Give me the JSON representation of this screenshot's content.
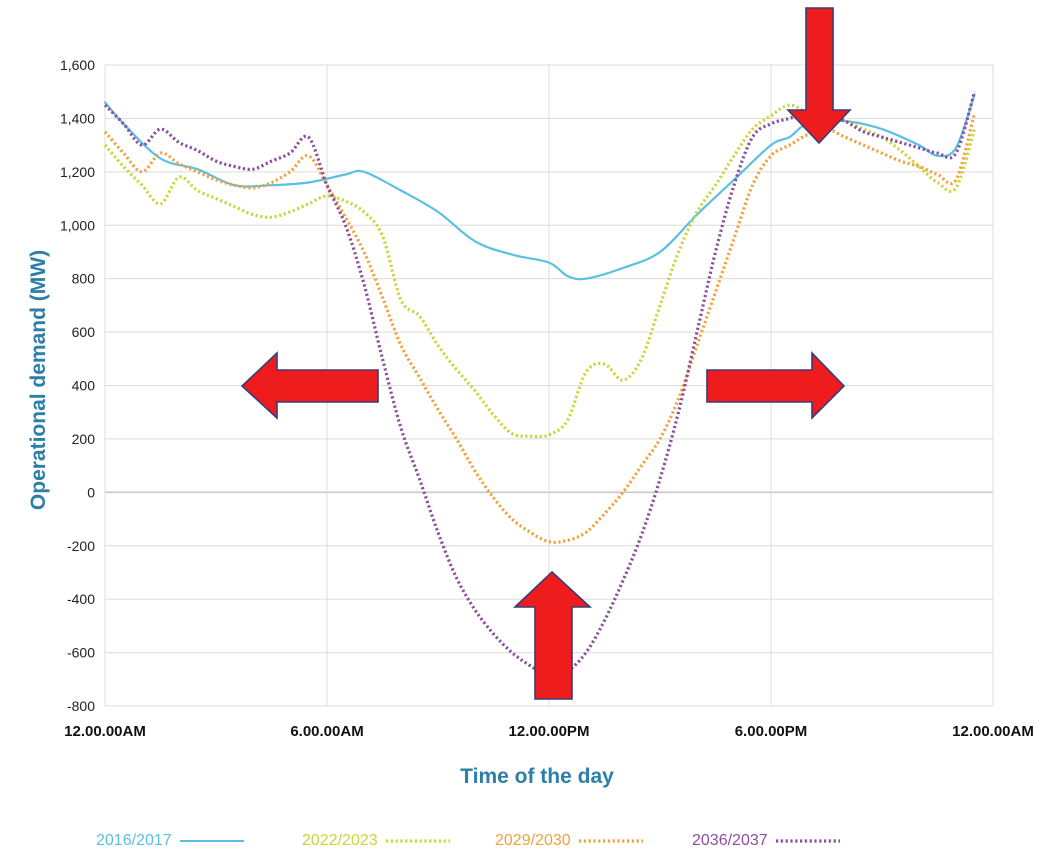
{
  "chart_data": {
    "type": "line",
    "title": "",
    "xlabel": "Time of the day",
    "ylabel": "Operational demand (MW)",
    "ylim": [
      -800,
      1600
    ],
    "yticks": [
      -800,
      -600,
      -400,
      -200,
      0,
      200,
      400,
      600,
      800,
      1000,
      1200,
      1400,
      1600
    ],
    "ytick_labels": [
      "-800",
      "-600",
      "-400",
      "-200",
      "0",
      "200",
      "400",
      "600",
      "800",
      "1,000",
      "1,200",
      "1,400",
      "1,600"
    ],
    "xlim": [
      0,
      24
    ],
    "xticks": [
      0,
      6,
      12,
      18,
      24
    ],
    "xtick_labels": [
      "12.00.00AM",
      "6.00.00AM",
      "12.00.00PM",
      "6.00.00PM",
      "12.00.00AM"
    ],
    "grid": true,
    "legend_position": "bottom",
    "series": [
      {
        "name": "2016/2017",
        "color": "#5bbfe3",
        "style": "solid",
        "x": [
          0,
          0.5,
          1.5,
          2.5,
          3.5,
          4.5,
          5.5,
          6.5,
          7,
          8,
          9,
          10,
          11,
          12,
          12.5,
          13,
          14,
          15,
          16,
          17,
          18,
          18.5,
          19,
          20,
          21,
          22,
          22.5,
          23,
          23.5
        ],
        "y": [
          1460,
          1380,
          1250,
          1210,
          1150,
          1150,
          1160,
          1190,
          1200,
          1130,
          1050,
          940,
          890,
          860,
          810,
          800,
          840,
          900,
          1040,
          1170,
          1300,
          1330,
          1380,
          1390,
          1360,
          1300,
          1260,
          1290,
          1490
        ]
      },
      {
        "name": "2022/2023",
        "color": "#c8d63a",
        "style": "dotted",
        "x": [
          0,
          0.5,
          1,
          1.5,
          2,
          2.5,
          3,
          3.5,
          4,
          4.5,
          5,
          5.5,
          6,
          6.5,
          7,
          7.5,
          8,
          8.5,
          9,
          9.5,
          10,
          10.5,
          11,
          11.5,
          12,
          12.5,
          13,
          13.5,
          14,
          14.5,
          15,
          15.5,
          16,
          16.5,
          17,
          17.5,
          18,
          18.5,
          19,
          19.5,
          20,
          20.5,
          21,
          21.5,
          22,
          22.5,
          23,
          23.5
        ],
        "y": [
          1300,
          1220,
          1150,
          1080,
          1180,
          1130,
          1100,
          1070,
          1040,
          1030,
          1050,
          1080,
          1110,
          1090,
          1050,
          960,
          720,
          660,
          550,
          460,
          380,
          290,
          220,
          210,
          215,
          270,
          450,
          480,
          420,
          500,
          700,
          900,
          1050,
          1150,
          1260,
          1360,
          1410,
          1450,
          1420,
          1400,
          1390,
          1360,
          1330,
          1280,
          1220,
          1160,
          1140,
          1360
        ]
      },
      {
        "name": "2029/2030",
        "color": "#f0a23c",
        "style": "dotted",
        "x": [
          0,
          0.5,
          1,
          1.5,
          2,
          2.5,
          3,
          3.5,
          4,
          4.5,
          5,
          5.5,
          6,
          6.5,
          7,
          7.5,
          8,
          8.5,
          9,
          9.5,
          10,
          10.5,
          11,
          11.5,
          12,
          12.5,
          13,
          13.5,
          14,
          14.5,
          15,
          15.5,
          16,
          16.5,
          17,
          17.5,
          18,
          18.5,
          19,
          19.5,
          20,
          20.5,
          21,
          21.5,
          22,
          22.5,
          23,
          23.5
        ],
        "y": [
          1350,
          1270,
          1200,
          1270,
          1230,
          1200,
          1170,
          1150,
          1140,
          1160,
          1200,
          1260,
          1150,
          1030,
          900,
          730,
          550,
          430,
          310,
          200,
          80,
          -20,
          -100,
          -150,
          -185,
          -180,
          -150,
          -80,
          0,
          100,
          200,
          350,
          550,
          750,
          950,
          1150,
          1260,
          1300,
          1340,
          1360,
          1330,
          1300,
          1270,
          1240,
          1220,
          1190,
          1170,
          1420
        ]
      },
      {
        "name": "2036/2037",
        "color": "#8b4e9b",
        "style": "dotted",
        "x": [
          0,
          0.5,
          1,
          1.5,
          2,
          2.5,
          3,
          3.5,
          4,
          4.5,
          5,
          5.5,
          6,
          6.5,
          7,
          7.5,
          8,
          8.5,
          9,
          9.5,
          10,
          10.5,
          11,
          11.5,
          12,
          12.5,
          13,
          13.5,
          14,
          14.5,
          15,
          15.5,
          16,
          16.5,
          17,
          17.5,
          18,
          18.5,
          19,
          19.5,
          20,
          20.5,
          21,
          21.5,
          22,
          22.5,
          23,
          23.5
        ],
        "y": [
          1450,
          1380,
          1300,
          1360,
          1310,
          1280,
          1240,
          1220,
          1210,
          1240,
          1270,
          1330,
          1150,
          1000,
          780,
          500,
          240,
          50,
          -150,
          -320,
          -440,
          -530,
          -600,
          -650,
          -690,
          -670,
          -600,
          -480,
          -330,
          -160,
          50,
          300,
          600,
          900,
          1150,
          1330,
          1380,
          1400,
          1420,
          1410,
          1390,
          1350,
          1330,
          1310,
          1290,
          1270,
          1270,
          1500
        ]
      }
    ]
  }
}
